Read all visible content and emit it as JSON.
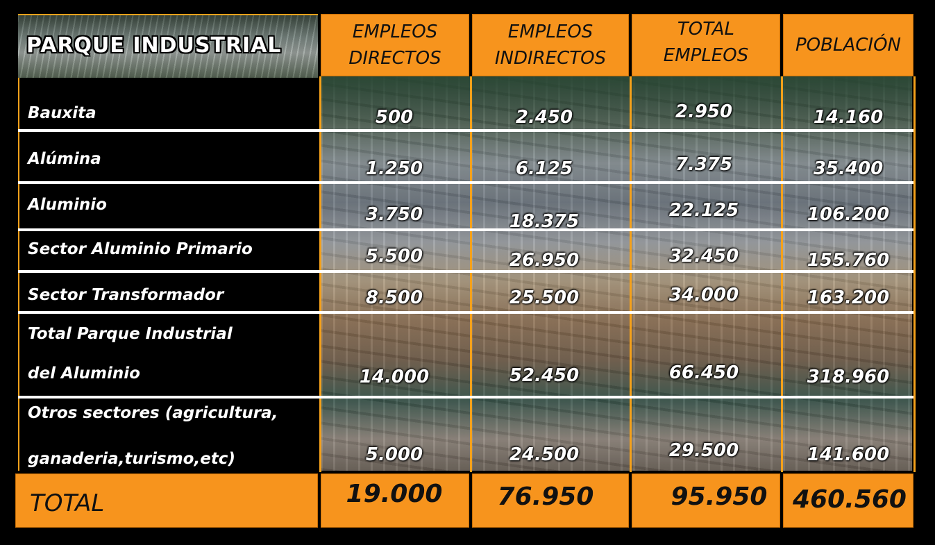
{
  "header": {
    "title": "PARQUE INDUSTRIAL",
    "columns": [
      "EMPLEOS DIRECTOS",
      "EMPLEOS INDIRECTOS",
      "TOTAL EMPLEOS",
      "POBLACIÓN"
    ],
    "col_lines": [
      [
        "EMPLEOS",
        "DIRECTOS"
      ],
      [
        "EMPLEOS",
        "INDIRECTOS"
      ],
      [
        "TOTAL",
        "EMPLEOS"
      ],
      [
        "POBLACIÓN"
      ]
    ]
  },
  "rows": [
    {
      "label_lines": [
        "Bauxita"
      ],
      "values": [
        "500",
        "2.450",
        "2.950",
        "14.160"
      ]
    },
    {
      "label_lines": [
        "Alúmina"
      ],
      "values": [
        "1.250",
        "6.125",
        "7.375",
        "35.400"
      ]
    },
    {
      "label_lines": [
        "Aluminio"
      ],
      "values": [
        "3.750",
        "18.375",
        "22.125",
        "106.200"
      ]
    },
    {
      "label_lines": [
        "Sector Aluminio Primario"
      ],
      "values": [
        "5.500",
        "26.950",
        "32.450",
        "155.760"
      ]
    },
    {
      "label_lines": [
        "Sector Transformador"
      ],
      "values": [
        "8.500",
        "25.500",
        "34.000",
        "163.200"
      ]
    },
    {
      "label_lines": [
        "Total Parque Industrial",
        "del Aluminio"
      ],
      "values": [
        "14.000",
        "52.450",
        "66.450",
        "318.960"
      ]
    },
    {
      "label_lines": [
        "Otros sectores (agricultura,",
        "ganaderia,turismo,etc)"
      ],
      "values": [
        "5.000",
        "24.500",
        "29.500",
        "141.600"
      ]
    }
  ],
  "total": {
    "label": "TOTAL",
    "values": [
      "19.000",
      "76.950",
      "95.950",
      "460.560"
    ]
  },
  "colors": {
    "orange": "#f7941d",
    "background": "#000000",
    "text_light": "#ffffff",
    "text_dark": "#111111"
  }
}
